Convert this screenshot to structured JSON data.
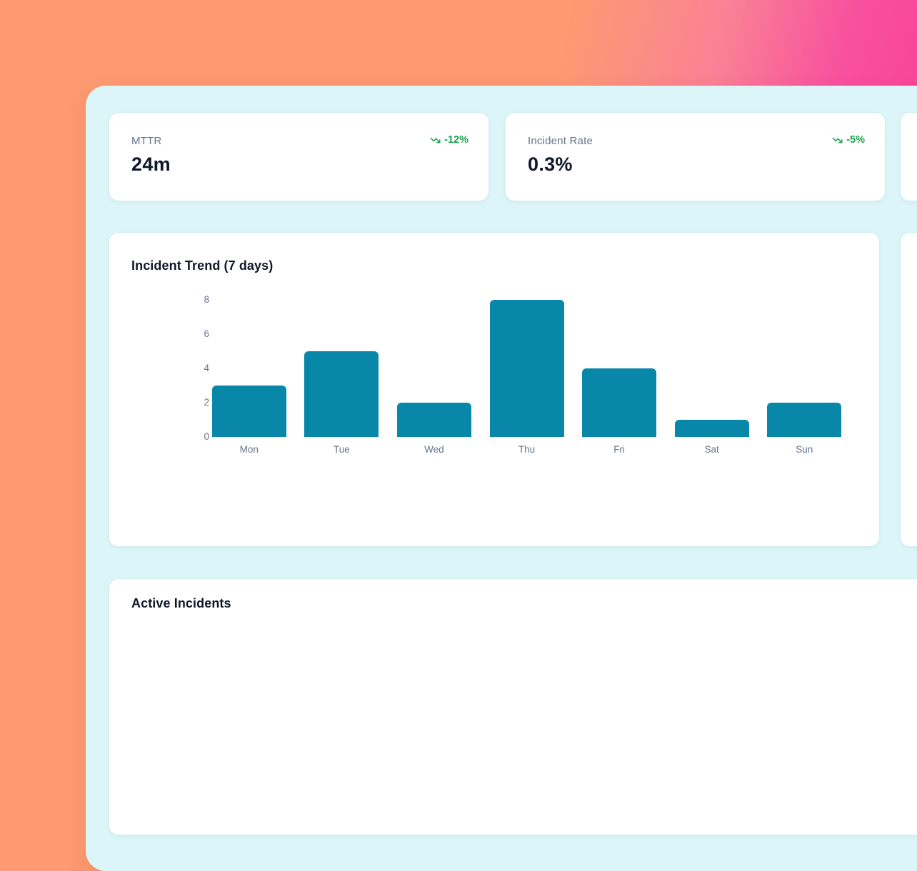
{
  "theme": {
    "bg_gradient": [
      "#fd9a71",
      "#f8509e",
      "#fb4054"
    ],
    "panel_bg": "#dcf5f8",
    "card_bg": "#ffffff",
    "card_border": "#d2f0f5",
    "label_gray": "#64748b",
    "value_dark": "#0f172a",
    "positive_green": "#16a34a",
    "bar_teal": "#0887a8"
  },
  "kpi_cards": [
    {
      "label": "MTTR",
      "value": "24m",
      "delta": "-12%",
      "delta_icon": "trending-down-icon",
      "delta_color": "#16a34a"
    },
    {
      "label": "Incident Rate",
      "value": "0.3%",
      "delta": "-5%",
      "delta_icon": "trending-down-icon",
      "delta_color": "#16a34a"
    }
  ],
  "chart_data": {
    "type": "bar",
    "title": "Incident Trend (7 days)",
    "categories": [
      "Mon",
      "Tue",
      "Wed",
      "Thu",
      "Fri",
      "Sat",
      "Sun"
    ],
    "values": [
      3,
      5,
      2,
      8,
      4,
      1,
      2
    ],
    "xlabel": "",
    "ylabel": "",
    "ylim": [
      0,
      8
    ],
    "yticks": [
      0,
      2,
      4,
      6,
      8
    ],
    "bar_color": "#0887a8",
    "grid": false,
    "legend": false
  },
  "sections": {
    "active_incidents_title": "Active Incidents"
  }
}
